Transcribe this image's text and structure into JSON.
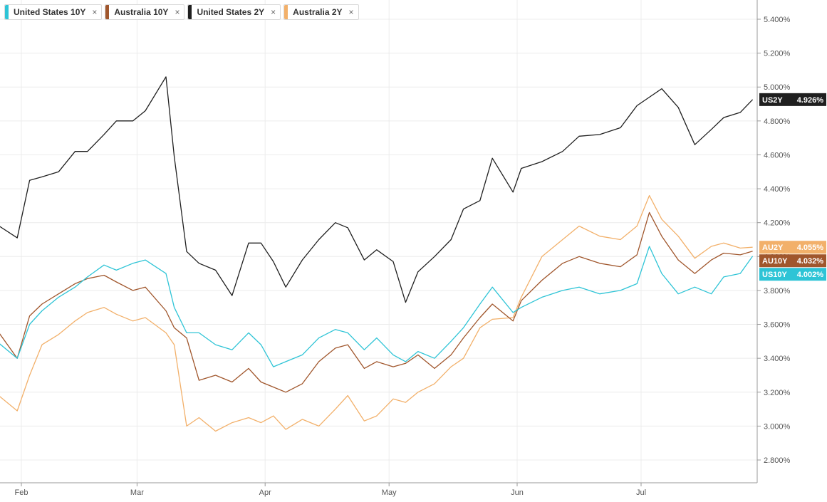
{
  "legend": [
    {
      "label": "United States 10Y",
      "color": "#2ec4d6"
    },
    {
      "label": "Australia 10Y",
      "color": "#a0562c"
    },
    {
      "label": "United States 2Y",
      "color": "#1f1f1f"
    },
    {
      "label": "Australia 2Y",
      "color": "#f2b06a"
    }
  ],
  "close_glyph": "×",
  "chart_data": {
    "type": "line",
    "ylim": [
      2.7,
      5.5
    ],
    "y_ticks": [
      2.8,
      3.0,
      3.2,
      3.4,
      3.6,
      3.8,
      4.0,
      4.2,
      4.4,
      4.6,
      4.8,
      5.0,
      5.2,
      5.4
    ],
    "y_tick_labels": [
      "2.800%",
      "3.000%",
      "3.200%",
      "3.400%",
      "3.600%",
      "3.800%",
      "4.000%",
      "4.200%",
      "4.400%",
      "4.600%",
      "4.800%",
      "5.000%",
      "5.200%",
      "5.400%"
    ],
    "x_tick_labels": [
      "Feb",
      "Mar",
      "Apr",
      "May",
      "Jun",
      "Jul"
    ],
    "x_tick_dates": [
      "2023-02-01",
      "2023-03-01",
      "2023-04-01",
      "2023-05-01",
      "2023-06-01",
      "2023-07-01"
    ],
    "x_range": [
      "2023-01-26",
      "2023-07-29"
    ],
    "grid": true,
    "series": [
      {
        "name": "United States 2Y",
        "short": "US2Y",
        "last_label": "4.926%",
        "color": "#1f1f1f",
        "x": [
          "2023-01-26",
          "2023-01-31",
          "2023-02-03",
          "2023-02-06",
          "2023-02-10",
          "2023-02-14",
          "2023-02-17",
          "2023-02-21",
          "2023-02-24",
          "2023-02-28",
          "2023-03-03",
          "2023-03-08",
          "2023-03-10",
          "2023-03-13",
          "2023-03-16",
          "2023-03-20",
          "2023-03-24",
          "2023-03-28",
          "2023-03-31",
          "2023-04-03",
          "2023-04-06",
          "2023-04-10",
          "2023-04-14",
          "2023-04-18",
          "2023-04-21",
          "2023-04-25",
          "2023-04-28",
          "2023-05-02",
          "2023-05-05",
          "2023-05-08",
          "2023-05-12",
          "2023-05-16",
          "2023-05-19",
          "2023-05-23",
          "2023-05-26",
          "2023-05-31",
          "2023-06-02",
          "2023-06-07",
          "2023-06-12",
          "2023-06-16",
          "2023-06-21",
          "2023-06-26",
          "2023-06-30",
          "2023-07-03",
          "2023-07-06",
          "2023-07-10",
          "2023-07-14",
          "2023-07-18",
          "2023-07-21",
          "2023-07-25",
          "2023-07-28"
        ],
        "y": [
          4.19,
          4.11,
          4.45,
          4.47,
          4.5,
          4.62,
          4.62,
          4.72,
          4.8,
          4.8,
          4.86,
          5.06,
          4.59,
          4.03,
          3.96,
          3.92,
          3.77,
          4.08,
          4.08,
          3.97,
          3.82,
          3.98,
          4.1,
          4.2,
          4.17,
          3.98,
          4.04,
          3.97,
          3.73,
          3.91,
          4.0,
          4.1,
          4.28,
          4.33,
          4.58,
          4.38,
          4.52,
          4.56,
          4.62,
          4.71,
          4.72,
          4.76,
          4.89,
          4.94,
          4.99,
          4.88,
          4.66,
          4.75,
          4.82,
          4.85,
          4.926
        ]
      },
      {
        "name": "Australia 2Y",
        "short": "AU2Y",
        "last_label": "4.055%",
        "color": "#f2b06a",
        "x": [
          "2023-01-26",
          "2023-01-31",
          "2023-02-03",
          "2023-02-06",
          "2023-02-10",
          "2023-02-14",
          "2023-02-17",
          "2023-02-21",
          "2023-02-24",
          "2023-02-28",
          "2023-03-03",
          "2023-03-08",
          "2023-03-10",
          "2023-03-13",
          "2023-03-16",
          "2023-03-20",
          "2023-03-24",
          "2023-03-28",
          "2023-03-31",
          "2023-04-03",
          "2023-04-06",
          "2023-04-10",
          "2023-04-14",
          "2023-04-18",
          "2023-04-21",
          "2023-04-25",
          "2023-04-28",
          "2023-05-02",
          "2023-05-05",
          "2023-05-08",
          "2023-05-12",
          "2023-05-16",
          "2023-05-19",
          "2023-05-23",
          "2023-05-26",
          "2023-05-31",
          "2023-06-02",
          "2023-06-07",
          "2023-06-12",
          "2023-06-16",
          "2023-06-21",
          "2023-06-26",
          "2023-06-30",
          "2023-07-03",
          "2023-07-06",
          "2023-07-10",
          "2023-07-14",
          "2023-07-18",
          "2023-07-21",
          "2023-07-25",
          "2023-07-28"
        ],
        "y": [
          3.19,
          3.09,
          3.3,
          3.48,
          3.54,
          3.62,
          3.67,
          3.7,
          3.66,
          3.62,
          3.64,
          3.55,
          3.48,
          3.0,
          3.05,
          2.97,
          3.02,
          3.05,
          3.02,
          3.06,
          2.98,
          3.04,
          3.0,
          3.1,
          3.18,
          3.03,
          3.06,
          3.16,
          3.14,
          3.2,
          3.25,
          3.35,
          3.4,
          3.58,
          3.63,
          3.64,
          3.76,
          4.0,
          4.1,
          4.18,
          4.12,
          4.1,
          4.18,
          4.36,
          4.22,
          4.12,
          3.99,
          4.06,
          4.08,
          4.05,
          4.055
        ]
      },
      {
        "name": "Australia 10Y",
        "short": "AU10Y",
        "last_label": "4.032%",
        "color": "#a0562c",
        "x": [
          "2023-01-26",
          "2023-01-31",
          "2023-02-03",
          "2023-02-06",
          "2023-02-10",
          "2023-02-14",
          "2023-02-17",
          "2023-02-21",
          "2023-02-24",
          "2023-02-28",
          "2023-03-03",
          "2023-03-08",
          "2023-03-10",
          "2023-03-13",
          "2023-03-16",
          "2023-03-20",
          "2023-03-24",
          "2023-03-28",
          "2023-03-31",
          "2023-04-03",
          "2023-04-06",
          "2023-04-10",
          "2023-04-14",
          "2023-04-18",
          "2023-04-21",
          "2023-04-25",
          "2023-04-28",
          "2023-05-02",
          "2023-05-05",
          "2023-05-08",
          "2023-05-12",
          "2023-05-16",
          "2023-05-19",
          "2023-05-23",
          "2023-05-26",
          "2023-05-31",
          "2023-06-02",
          "2023-06-07",
          "2023-06-12",
          "2023-06-16",
          "2023-06-21",
          "2023-06-26",
          "2023-06-30",
          "2023-07-03",
          "2023-07-06",
          "2023-07-10",
          "2023-07-14",
          "2023-07-18",
          "2023-07-21",
          "2023-07-25",
          "2023-07-28"
        ],
        "y": [
          3.57,
          3.4,
          3.65,
          3.72,
          3.78,
          3.84,
          3.87,
          3.89,
          3.85,
          3.8,
          3.82,
          3.68,
          3.58,
          3.52,
          3.27,
          3.3,
          3.26,
          3.34,
          3.26,
          3.23,
          3.2,
          3.25,
          3.38,
          3.46,
          3.48,
          3.34,
          3.38,
          3.35,
          3.37,
          3.42,
          3.34,
          3.42,
          3.52,
          3.64,
          3.72,
          3.62,
          3.74,
          3.86,
          3.96,
          4.0,
          3.96,
          3.94,
          4.01,
          4.26,
          4.12,
          3.98,
          3.9,
          3.98,
          4.02,
          4.01,
          4.032
        ]
      },
      {
        "name": "United States 10Y",
        "short": "US10Y",
        "last_label": "4.002%",
        "color": "#2ec4d6",
        "x": [
          "2023-01-26",
          "2023-01-31",
          "2023-02-03",
          "2023-02-06",
          "2023-02-10",
          "2023-02-14",
          "2023-02-17",
          "2023-02-21",
          "2023-02-24",
          "2023-02-28",
          "2023-03-03",
          "2023-03-08",
          "2023-03-10",
          "2023-03-13",
          "2023-03-16",
          "2023-03-20",
          "2023-03-24",
          "2023-03-28",
          "2023-03-31",
          "2023-04-03",
          "2023-04-06",
          "2023-04-10",
          "2023-04-14",
          "2023-04-18",
          "2023-04-21",
          "2023-04-25",
          "2023-04-28",
          "2023-05-02",
          "2023-05-05",
          "2023-05-08",
          "2023-05-12",
          "2023-05-16",
          "2023-05-19",
          "2023-05-23",
          "2023-05-26",
          "2023-05-31",
          "2023-06-02",
          "2023-06-07",
          "2023-06-12",
          "2023-06-16",
          "2023-06-21",
          "2023-06-26",
          "2023-06-30",
          "2023-07-03",
          "2023-07-06",
          "2023-07-10",
          "2023-07-14",
          "2023-07-18",
          "2023-07-21",
          "2023-07-25",
          "2023-07-28"
        ],
        "y": [
          3.5,
          3.4,
          3.6,
          3.68,
          3.76,
          3.82,
          3.88,
          3.95,
          3.92,
          3.96,
          3.98,
          3.9,
          3.7,
          3.55,
          3.55,
          3.48,
          3.45,
          3.55,
          3.48,
          3.35,
          3.38,
          3.42,
          3.52,
          3.57,
          3.55,
          3.45,
          3.52,
          3.42,
          3.38,
          3.44,
          3.4,
          3.5,
          3.58,
          3.72,
          3.82,
          3.67,
          3.7,
          3.76,
          3.8,
          3.82,
          3.78,
          3.8,
          3.84,
          4.06,
          3.9,
          3.78,
          3.82,
          3.78,
          3.88,
          3.9,
          4.002
        ]
      }
    ]
  }
}
